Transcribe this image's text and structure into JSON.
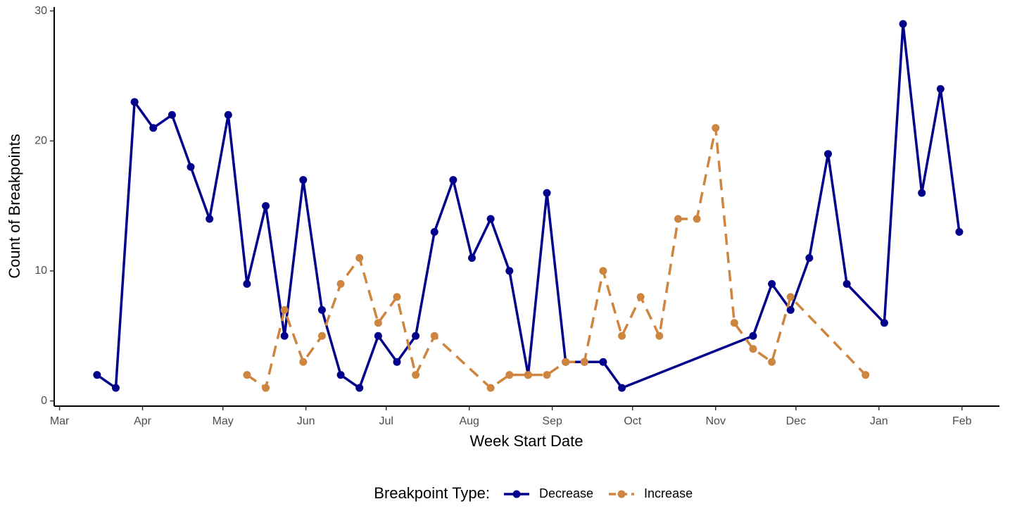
{
  "chart_data": {
    "type": "line",
    "xlabel": "Week Start Date",
    "ylabel": "Count of Breakpoints",
    "legend_title": "Breakpoint Type:",
    "legend": "bottom",
    "xlim": [
      -2,
      351
    ],
    "xticks": [
      {
        "value": 0,
        "label": "Mar"
      },
      {
        "value": 31,
        "label": "Apr"
      },
      {
        "value": 61,
        "label": "May"
      },
      {
        "value": 92,
        "label": "Jun"
      },
      {
        "value": 122,
        "label": "Jul"
      },
      {
        "value": 153,
        "label": "Aug"
      },
      {
        "value": 184,
        "label": "Sep"
      },
      {
        "value": 214,
        "label": "Oct"
      },
      {
        "value": 245,
        "label": "Nov"
      },
      {
        "value": 275,
        "label": "Dec"
      },
      {
        "value": 306,
        "label": "Jan"
      },
      {
        "value": 337,
        "label": "Feb"
      }
    ],
    "ylim": [
      -0.4,
      30.3
    ],
    "yticks": [
      0,
      10,
      20,
      30
    ],
    "series": [
      {
        "name": "Decrease",
        "color": "#00008b",
        "dashed": false,
        "x": [
          14,
          21,
          28,
          35,
          42,
          49,
          56,
          63,
          70,
          77,
          84,
          91,
          98,
          105,
          112,
          119,
          126,
          133,
          140,
          147,
          154,
          161,
          168,
          175,
          182,
          189,
          196,
          203,
          210,
          259,
          266,
          273,
          280,
          287,
          294,
          308,
          315,
          322,
          329,
          336
        ],
        "values": [
          2,
          1,
          23,
          21,
          22,
          18,
          14,
          22,
          9,
          15,
          5,
          17,
          7,
          2,
          1,
          5,
          3,
          5,
          13,
          17,
          11,
          14,
          10,
          2,
          16,
          3,
          3,
          3,
          1,
          5,
          9,
          7,
          11,
          19,
          9,
          6,
          29,
          16,
          24,
          13
        ]
      },
      {
        "name": "Increase",
        "color": "#cd853f",
        "dashed": true,
        "x": [
          70,
          77,
          84,
          91,
          98,
          105,
          112,
          119,
          126,
          133,
          140,
          161,
          168,
          175,
          182,
          189,
          196,
          203,
          210,
          217,
          224,
          231,
          238,
          245,
          252,
          259,
          266,
          273,
          301
        ],
        "values": [
          2,
          1,
          7,
          3,
          5,
          9,
          11,
          6,
          8,
          2,
          5,
          1,
          2,
          2,
          2,
          3,
          3,
          10,
          5,
          8,
          5,
          14,
          14,
          21,
          6,
          4,
          3,
          8,
          2
        ]
      }
    ]
  }
}
